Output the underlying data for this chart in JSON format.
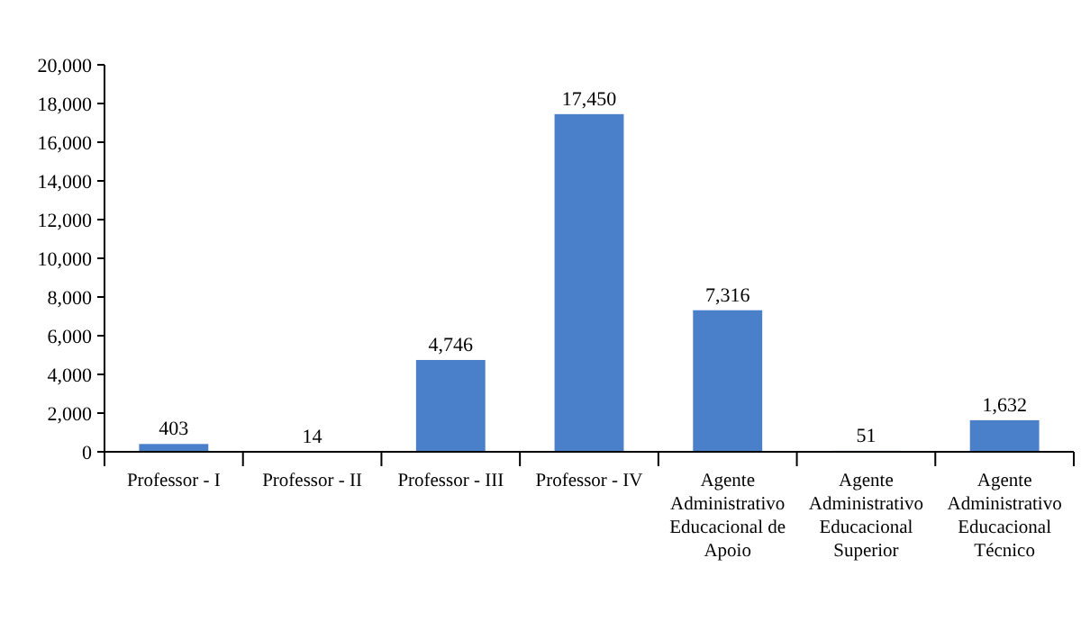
{
  "chart_data": {
    "type": "bar",
    "categories": [
      "Professor - I",
      "Professor - II",
      "Professor - III",
      "Professor - IV",
      "Agente Administrativo Educacional de Apoio",
      "Agente Administrativo Educacional Superior",
      "Agente Administrativo Educacional Técnico"
    ],
    "values": [
      403,
      14,
      4746,
      17450,
      7316,
      51,
      1632
    ],
    "value_labels": [
      "403",
      "14",
      "4,746",
      "17,450",
      "7,316",
      "51",
      "1,632"
    ],
    "color": "#4a7fc9",
    "ylim": [
      0,
      20000
    ],
    "yticks": [
      0,
      {
        "value": 2000,
        "label": "2,000"
      },
      {
        "value": 4000,
        "label": "4,000"
      },
      {
        "value": 6000,
        "label": "6,000"
      },
      {
        "value": 8000,
        "label": "8,000"
      },
      {
        "value": 10000,
        "label": "10,000"
      },
      {
        "value": 12000,
        "label": "12,000"
      },
      {
        "value": 14000,
        "label": "14,000"
      },
      {
        "value": 16000,
        "label": "16,000"
      },
      {
        "value": 18000,
        "label": "18,000"
      },
      {
        "value": 20000,
        "label": "20,000"
      }
    ],
    "grid": false
  }
}
